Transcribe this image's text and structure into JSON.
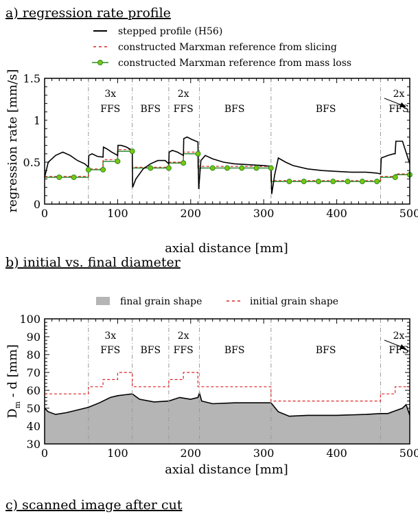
{
  "sections": {
    "a": "a) regression rate profile",
    "b": "b) initial vs. final diameter",
    "c": "c) scanned image after cut"
  },
  "colors": {
    "stepped": "#000000",
    "slicing": "#dd2222",
    "massloss": "#2a8a2a",
    "marker": "#7ac70c",
    "final_fill": "#b5b5b5",
    "initial": "#dd2222",
    "divider": "#999999"
  },
  "chart_data": [
    {
      "type": "line",
      "title": "a) regression rate profile",
      "xlabel": "axial distance [mm]",
      "ylabel": "regression rate [mm/s]",
      "xlim": [
        0,
        500
      ],
      "ylim": [
        0,
        1.5
      ],
      "x_ticks": [
        "0",
        "100",
        "200",
        "300",
        "400",
        "500"
      ],
      "y_ticks": [
        "0",
        "0.5",
        "1",
        "1.5"
      ],
      "legend_position": "top",
      "regions": [
        {
          "line1": "3x",
          "line2": "FFS",
          "x": 90
        },
        {
          "line1": "",
          "line2": "BFS",
          "x": 145
        },
        {
          "line1": "2x",
          "line2": "FFS",
          "x": 190
        },
        {
          "line1": "",
          "line2": "BFS",
          "x": 260
        },
        {
          "line1": "",
          "line2": "BFS",
          "x": 385
        },
        {
          "line1": "2x",
          "line2": "FFS",
          "x": 485
        }
      ],
      "dividers": [
        60,
        120,
        170,
        212,
        310,
        460
      ],
      "series": [
        {
          "name": "stepped profile (H56)",
          "style": "solid",
          "x": [
            0,
            5,
            15,
            25,
            35,
            45,
            55,
            60,
            60.5,
            65,
            72,
            80,
            80.5,
            85,
            92,
            100,
            100.5,
            105,
            112,
            120,
            120.5,
            125,
            135,
            145,
            155,
            165,
            170,
            170.5,
            175,
            182,
            190,
            190.5,
            195,
            202,
            210,
            211,
            214,
            220,
            230,
            245,
            260,
            280,
            300,
            310,
            311,
            315,
            320,
            330,
            340,
            360,
            380,
            400,
            420,
            440,
            455,
            460,
            461,
            470,
            478,
            480,
            481,
            490,
            500
          ],
          "y": [
            0.32,
            0.5,
            0.58,
            0.62,
            0.58,
            0.52,
            0.48,
            0.44,
            0.58,
            0.6,
            0.57,
            0.56,
            0.68,
            0.66,
            0.62,
            0.58,
            0.7,
            0.7,
            0.68,
            0.64,
            0.2,
            0.3,
            0.42,
            0.48,
            0.52,
            0.52,
            0.48,
            0.62,
            0.64,
            0.62,
            0.58,
            0.78,
            0.8,
            0.77,
            0.74,
            0.18,
            0.52,
            0.58,
            0.54,
            0.5,
            0.48,
            0.47,
            0.46,
            0.45,
            0.12,
            0.35,
            0.55,
            0.5,
            0.46,
            0.42,
            0.4,
            0.39,
            0.38,
            0.38,
            0.37,
            0.36,
            0.55,
            0.58,
            0.6,
            0.6,
            0.75,
            0.75,
            0.48
          ]
        },
        {
          "name": "constructed Marxman reference from slicing",
          "style": "dashed",
          "x": [
            0,
            60,
            60,
            80,
            80,
            100,
            100,
            120,
            120,
            170,
            170,
            190,
            190,
            210,
            210,
            310,
            310,
            460,
            460,
            480,
            480,
            500
          ],
          "y": [
            0.33,
            0.33,
            0.42,
            0.42,
            0.53,
            0.53,
            0.65,
            0.65,
            0.44,
            0.44,
            0.5,
            0.5,
            0.62,
            0.62,
            0.45,
            0.45,
            0.28,
            0.28,
            0.33,
            0.33,
            0.36,
            0.36
          ]
        },
        {
          "name": "constructed Marxman reference from mass loss",
          "style": "solid-marker",
          "x": [
            0,
            60,
            60,
            80,
            80,
            100,
            100,
            120,
            120,
            170,
            170,
            190,
            190,
            210,
            210,
            310,
            310,
            460,
            460,
            480,
            480,
            500
          ],
          "y": [
            0.32,
            0.32,
            0.41,
            0.41,
            0.51,
            0.51,
            0.63,
            0.63,
            0.43,
            0.43,
            0.49,
            0.49,
            0.6,
            0.6,
            0.43,
            0.43,
            0.27,
            0.27,
            0.32,
            0.32,
            0.35,
            0.35
          ],
          "markers_x": [
            20,
            40,
            60,
            80,
            100,
            120,
            145,
            170,
            190,
            210,
            230,
            250,
            270,
            290,
            310,
            335,
            355,
            375,
            395,
            415,
            435,
            455,
            480,
            500
          ],
          "markers_y": [
            0.32,
            0.32,
            0.41,
            0.41,
            0.51,
            0.63,
            0.43,
            0.43,
            0.49,
            0.6,
            0.43,
            0.43,
            0.43,
            0.43,
            0.43,
            0.27,
            0.27,
            0.27,
            0.27,
            0.27,
            0.27,
            0.27,
            0.32,
            0.35
          ]
        }
      ]
    },
    {
      "type": "area",
      "title": "b) initial vs. final diameter",
      "xlabel": "axial distance [mm]",
      "ylabel": "D_m - d [mm]",
      "xlim": [
        0,
        500
      ],
      "ylim": [
        30,
        100
      ],
      "x_ticks": [
        "0",
        "100",
        "200",
        "300",
        "400",
        "500"
      ],
      "y_ticks": [
        "30",
        "40",
        "50",
        "60",
        "70",
        "80",
        "90",
        "100"
      ],
      "legend_position": "top",
      "regions": [
        {
          "line1": "3x",
          "line2": "FFS",
          "x": 90
        },
        {
          "line1": "",
          "line2": "BFS",
          "x": 145
        },
        {
          "line1": "2x",
          "line2": "FFS",
          "x": 190
        },
        {
          "line1": "",
          "line2": "BFS",
          "x": 260
        },
        {
          "line1": "",
          "line2": "BFS",
          "x": 385
        },
        {
          "line1": "2x",
          "line2": "FFS",
          "x": 485
        }
      ],
      "dividers": [
        60,
        120,
        170,
        212,
        310,
        460
      ],
      "series": [
        {
          "name": "final grain shape",
          "style": "filled",
          "x": [
            0,
            5,
            15,
            30,
            45,
            60,
            75,
            90,
            100,
            110,
            120,
            130,
            150,
            170,
            185,
            200,
            210,
            212,
            215,
            230,
            260,
            290,
            310,
            320,
            335,
            360,
            400,
            440,
            460,
            470,
            480,
            490,
            495,
            500
          ],
          "y": [
            50,
            48,
            46.5,
            47.5,
            49,
            50.5,
            53,
            56,
            57,
            57.5,
            58,
            55,
            53.5,
            54,
            56,
            55,
            56,
            58.5,
            54,
            52.5,
            53,
            53,
            53,
            48,
            45.5,
            46,
            46,
            46.5,
            47,
            47,
            48.5,
            50,
            52,
            46
          ]
        },
        {
          "name": "initial grain shape",
          "style": "dashed",
          "x": [
            0,
            60,
            60,
            80,
            80,
            100,
            100,
            120,
            120,
            170,
            170,
            190,
            190,
            210,
            210,
            310,
            310,
            460,
            460,
            480,
            480,
            500
          ],
          "y": [
            58,
            58,
            62,
            62,
            66,
            66,
            70,
            70,
            62,
            62,
            66,
            66,
            70,
            70,
            62,
            62,
            54,
            54,
            58,
            58,
            62,
            62
          ]
        }
      ]
    }
  ]
}
